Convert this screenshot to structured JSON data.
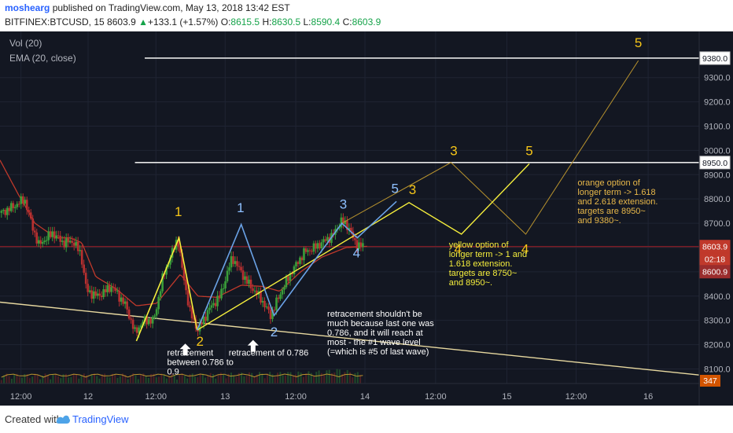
{
  "header": {
    "author": "moshearg",
    "published_text": "published on TradingView.com, May 13, 2018 13:42 EST",
    "symbol": "BITFINEX:BTCUSD, 15",
    "last_price": "8603.9",
    "change": "+133.1 (+1.57%)",
    "o_label": "O:",
    "o": "8615.5",
    "h_label": "H:",
    "h": "8630.5",
    "l_label": "L:",
    "l": "8590.4",
    "c_label": "C:",
    "c": "8603.9"
  },
  "indicators": {
    "vol": "Vol (20)",
    "ema": "EMA (20, close)"
  },
  "footer": {
    "created_with": "Created with",
    "brand": "TradingView"
  },
  "colors": {
    "background": "#131722",
    "grid": "#1f2433",
    "candle_up": "#3a9e3a",
    "candle_down": "#b83030",
    "ema": "#c0392b",
    "blue_wave": "#6aa2e6",
    "yellow_wave": "#f5ee3c",
    "orange_wave": "#b8932e",
    "label_yellow": "#f5c518",
    "label_blue": "#8ec0ff",
    "white_line": "#e8e8e8"
  },
  "chart_data": {
    "type": "candlestick",
    "symbol": "BITFINEX:BTCUSD",
    "interval": "15",
    "ylim": [
      8040,
      9490
    ],
    "yticks": [
      8100,
      8200,
      8300,
      8400,
      8500,
      8600,
      8700,
      8800,
      8900,
      9000,
      9100,
      9200,
      9300
    ],
    "x_range": [
      0,
      100
    ],
    "xticks": [
      {
        "x": 3,
        "label": "12:00"
      },
      {
        "x": 12.6,
        "label": "12"
      },
      {
        "x": 22.3,
        "label": "12:00"
      },
      {
        "x": 32.2,
        "label": "13"
      },
      {
        "x": 42.3,
        "label": "12:00"
      },
      {
        "x": 52.2,
        "label": "14"
      },
      {
        "x": 62.3,
        "label": "12:00"
      },
      {
        "x": 72.5,
        "label": "15"
      },
      {
        "x": 82.4,
        "label": "12:00"
      },
      {
        "x": 92.7,
        "label": "16"
      }
    ],
    "price_badges": [
      {
        "price": 9380,
        "label": "9380.0"
      },
      {
        "price": 8950,
        "label": "8950.0"
      },
      {
        "price": 8604,
        "label": "8603.9"
      },
      {
        "price": 8576,
        "label": "02:18"
      },
      {
        "price": 8600.9,
        "label": "8600.9"
      }
    ],
    "volume_label": "347",
    "horizontal_lines": [
      {
        "price": 9380,
        "x_start": 20.7,
        "x_end": 100
      },
      {
        "price": 8950,
        "x_start": 19.3,
        "x_end": 100
      }
    ],
    "current_price_line": 8604,
    "trendline": [
      [
        0,
        8375
      ],
      [
        100,
        8075
      ]
    ],
    "candles_x_range": [
      0.2,
      51.9
    ],
    "candle_anchors": [
      [
        0,
        8740
      ],
      [
        2,
        8770
      ],
      [
        3.5,
        8800
      ],
      [
        4.5,
        8700
      ],
      [
        5.5,
        8610
      ],
      [
        7.5,
        8660
      ],
      [
        9,
        8620
      ],
      [
        10.5,
        8625
      ],
      [
        11.6,
        8570
      ],
      [
        12.4,
        8420
      ],
      [
        14,
        8400
      ],
      [
        16,
        8440
      ],
      [
        18,
        8360
      ],
      [
        19.3,
        8250
      ],
      [
        20.6,
        8300
      ],
      [
        22,
        8300
      ],
      [
        23.3,
        8480
      ],
      [
        24.9,
        8600
      ],
      [
        25.4,
        8640
      ],
      [
        26,
        8520
      ],
      [
        27.2,
        8330
      ],
      [
        28.3,
        8260
      ],
      [
        30,
        8350
      ],
      [
        31.5,
        8400
      ],
      [
        33.2,
        8560
      ],
      [
        35.3,
        8460
      ],
      [
        37.3,
        8390
      ],
      [
        38.7,
        8320
      ],
      [
        40.4,
        8430
      ],
      [
        41.7,
        8500
      ],
      [
        43.5,
        8580
      ],
      [
        45,
        8600
      ],
      [
        47.6,
        8650
      ],
      [
        48.8,
        8710
      ],
      [
        50,
        8680
      ],
      [
        50.7,
        8620
      ],
      [
        51.9,
        8605
      ]
    ],
    "ema_anchors": [
      [
        0,
        8960
      ],
      [
        2.6,
        8820
      ],
      [
        5,
        8700
      ],
      [
        8,
        8640
      ],
      [
        10,
        8640
      ],
      [
        11.7,
        8620
      ],
      [
        13.7,
        8480
      ],
      [
        16.6,
        8430
      ],
      [
        19.5,
        8360
      ],
      [
        22.4,
        8370
      ],
      [
        25.8,
        8490
      ],
      [
        28.3,
        8400
      ],
      [
        31,
        8395
      ],
      [
        34.5,
        8445
      ],
      [
        37.5,
        8440
      ],
      [
        40,
        8420
      ],
      [
        43,
        8500
      ],
      [
        46,
        8560
      ],
      [
        49.5,
        8600
      ],
      [
        52.5,
        8605
      ]
    ],
    "volume_anchors": [
      [
        28,
        0.2
      ],
      [
        36,
        0.35
      ],
      [
        44,
        0.45
      ],
      [
        48.6,
        0.8
      ],
      [
        51.5,
        0.3
      ]
    ],
    "blue_wave": [
      [
        28.2,
        8260
      ],
      [
        34.5,
        8695
      ],
      [
        39.2,
        8320
      ],
      [
        48.9,
        8700
      ],
      [
        51.1,
        8640
      ],
      [
        56.7,
        8790
      ]
    ],
    "yellow_short_wave": [
      [
        19.5,
        8215
      ],
      [
        25.6,
        8640
      ],
      [
        28.2,
        8260
      ]
    ],
    "yellow_option": [
      [
        28.2,
        8260
      ],
      [
        58.5,
        8785
      ],
      [
        66,
        8655
      ],
      [
        75.7,
        8945
      ]
    ],
    "orange_option": [
      [
        48.9,
        8700
      ],
      [
        64.5,
        8950
      ],
      [
        75.2,
        8655
      ],
      [
        91.3,
        9370
      ]
    ],
    "wave_labels": [
      {
        "text": "1",
        "x": 25.5,
        "y": 8730,
        "color": "#f5c518"
      },
      {
        "text": "2",
        "x": 28.6,
        "y": 8195,
        "color": "#f5c518"
      },
      {
        "text": "1",
        "x": 34.4,
        "y": 8745,
        "color": "#8ec0ff"
      },
      {
        "text": "2",
        "x": 39.2,
        "y": 8235,
        "color": "#8ec0ff"
      },
      {
        "text": "3",
        "x": 49.1,
        "y": 8760,
        "color": "#8ec0ff"
      },
      {
        "text": "4",
        "x": 51,
        "y": 8560,
        "color": "#8ec0ff"
      },
      {
        "text": "5",
        "x": 56.5,
        "y": 8825,
        "color": "#8ec0ff"
      },
      {
        "text": "3",
        "x": 59,
        "y": 8820,
        "color": "#f5c518"
      },
      {
        "text": "3",
        "x": 64.9,
        "y": 8980,
        "color": "#f5c518"
      },
      {
        "text": "4",
        "x": 65.5,
        "y": 8575,
        "color": "#f5c518"
      },
      {
        "text": "5",
        "x": 75.7,
        "y": 8980,
        "color": "#f5c518"
      },
      {
        "text": "4",
        "x": 75.1,
        "y": 8575,
        "color": "#f5c518"
      },
      {
        "text": "5",
        "x": 91.3,
        "y": 9425,
        "color": "#f5c518"
      }
    ],
    "annotations": [
      {
        "lines": [
          "retracement",
          "between 0.786 to",
          "0.9"
        ],
        "x": 23.9,
        "y": 8155,
        "color": "#ffffff"
      },
      {
        "lines": [
          "retracement of 0.786"
        ],
        "x": 32.7,
        "y": 8155,
        "color": "#ffffff"
      },
      {
        "lines": [
          "retracement shouldn't be",
          "much because last one was",
          "0.786, and it will reach at",
          "most - the #1 wave level",
          "(=which is #5 of last wave)"
        ],
        "x": 46.8,
        "y": 8315,
        "color": "#ffffff"
      },
      {
        "lines": [
          "yellow option of",
          "longer term -> 1 and",
          "1.618 extension.",
          "targets are 8750~",
          "and 8950~."
        ],
        "x": 64.2,
        "y": 8600,
        "color": "#f5ee3c"
      },
      {
        "lines": [
          "orange option of",
          "longer term -> 1.618",
          "and 2.618 extension.",
          "targets are 8950~",
          "and 9380~."
        ],
        "x": 82.6,
        "y": 8855,
        "color": "#e8b84a"
      }
    ],
    "arrows": [
      {
        "x": 26.5,
        "y": 8175
      },
      {
        "x": 36.2,
        "y": 8190
      }
    ]
  }
}
